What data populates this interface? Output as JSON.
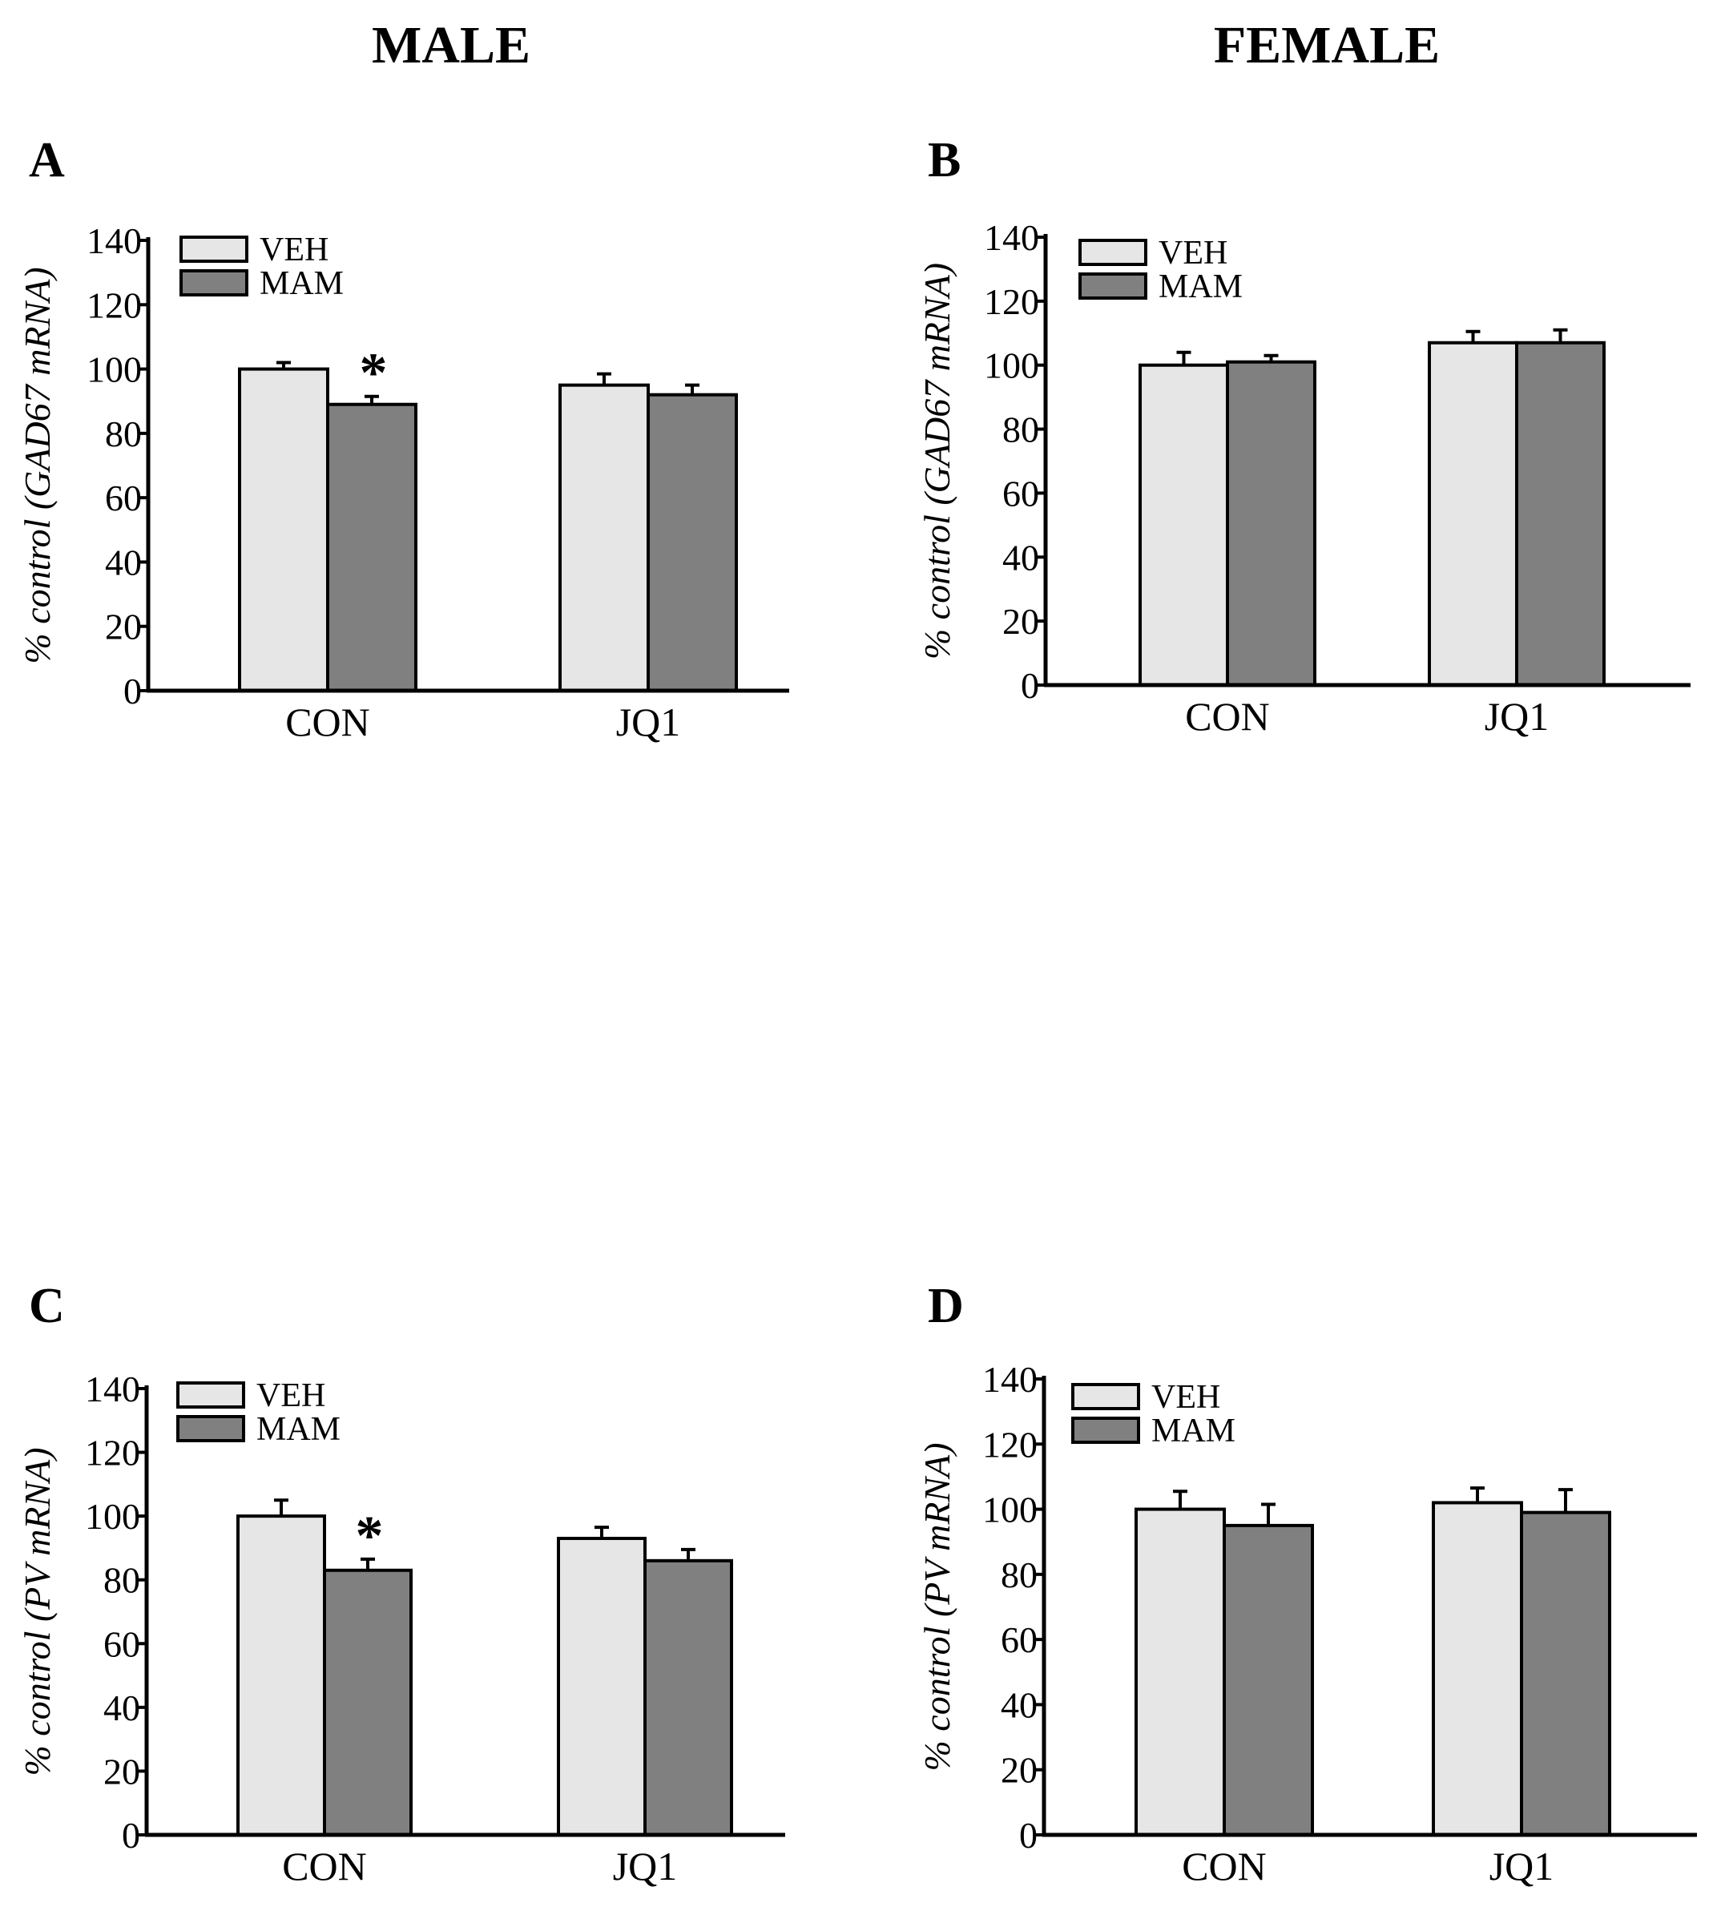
{
  "column_titles": [
    "MALE",
    "FEMALE"
  ],
  "colors": {
    "VEH": "#e6e6e6",
    "MAM": "#808080",
    "stroke": "#000000"
  },
  "chart_data": [
    {
      "panel": "A",
      "type": "bar",
      "categories": [
        "CON",
        "JQ1"
      ],
      "series": [
        {
          "name": "VEH",
          "values": [
            100,
            95
          ],
          "errors": [
            2,
            3.5
          ]
        },
        {
          "name": "MAM",
          "values": [
            89,
            92
          ],
          "errors": [
            2.5,
            3
          ]
        }
      ],
      "ylabel": "% control (GAD67 mRNA)",
      "ylim": [
        0,
        140
      ],
      "yticks": [
        "0",
        "20",
        "40",
        "60",
        "80",
        "100",
        "120",
        "140"
      ],
      "legend": [
        "VEH",
        "MAM"
      ],
      "legend_position": "top-left",
      "annotations": [
        {
          "category": "CON",
          "series": "MAM",
          "text": "*"
        }
      ]
    },
    {
      "panel": "B",
      "type": "bar",
      "categories": [
        "CON",
        "JQ1"
      ],
      "series": [
        {
          "name": "VEH",
          "values": [
            100,
            107
          ],
          "errors": [
            4,
            3.5
          ]
        },
        {
          "name": "MAM",
          "values": [
            101,
            107
          ],
          "errors": [
            2,
            4
          ]
        }
      ],
      "ylabel": "% control (GAD67 mRNA)",
      "ylim": [
        0,
        140
      ],
      "yticks": [
        "0",
        "20",
        "40",
        "60",
        "80",
        "100",
        "120",
        "140"
      ],
      "legend": [
        "VEH",
        "MAM"
      ],
      "legend_position": "top-left",
      "annotations": []
    },
    {
      "panel": "C",
      "type": "bar",
      "categories": [
        "CON",
        "JQ1"
      ],
      "series": [
        {
          "name": "VEH",
          "values": [
            100,
            93
          ],
          "errors": [
            5,
            3.5
          ]
        },
        {
          "name": "MAM",
          "values": [
            83,
            86
          ],
          "errors": [
            3.5,
            3.5
          ]
        }
      ],
      "ylabel": "% control (PV mRNA)",
      "ylim": [
        0,
        140
      ],
      "yticks": [
        "0",
        "20",
        "40",
        "60",
        "80",
        "100",
        "120",
        "140"
      ],
      "legend": [
        "VEH",
        "MAM"
      ],
      "legend_position": "top-left",
      "annotations": [
        {
          "category": "CON",
          "series": "MAM",
          "text": "*"
        }
      ]
    },
    {
      "panel": "D",
      "type": "bar",
      "categories": [
        "CON",
        "JQ1"
      ],
      "series": [
        {
          "name": "VEH",
          "values": [
            100,
            102
          ],
          "errors": [
            5.5,
            4.5
          ]
        },
        {
          "name": "MAM",
          "values": [
            95,
            99
          ],
          "errors": [
            6.5,
            7
          ]
        }
      ],
      "ylabel": "% control (PV mRNA)",
      "ylim": [
        0,
        140
      ],
      "yticks": [
        "0",
        "20",
        "40",
        "60",
        "80",
        "100",
        "120",
        "140"
      ],
      "legend": [
        "VEH",
        "MAM"
      ],
      "legend_position": "top-left",
      "annotations": []
    }
  ]
}
